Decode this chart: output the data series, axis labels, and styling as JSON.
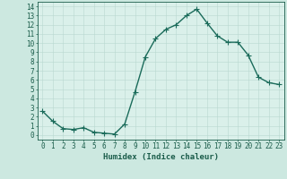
{
  "x": [
    0,
    1,
    2,
    3,
    4,
    5,
    6,
    7,
    8,
    9,
    10,
    11,
    12,
    13,
    14,
    15,
    16,
    17,
    18,
    19,
    20,
    21,
    22,
    23
  ],
  "y": [
    2.6,
    1.5,
    0.7,
    0.6,
    0.8,
    0.3,
    0.2,
    0.1,
    1.2,
    4.7,
    8.5,
    10.5,
    11.5,
    12.0,
    13.0,
    13.7,
    12.2,
    10.8,
    10.1,
    10.1,
    8.7,
    6.3,
    5.7,
    5.5
  ],
  "line_color": "#1a6b5a",
  "bg_color": "#cce8e0",
  "grid_color": "#b8d8d0",
  "plot_bg": "#daf0ea",
  "xlabel": "Humidex (Indice chaleur)",
  "ylabel_ticks": [
    0,
    1,
    2,
    3,
    4,
    5,
    6,
    7,
    8,
    9,
    10,
    11,
    12,
    13,
    14
  ],
  "xlim": [
    -0.5,
    23.5
  ],
  "ylim": [
    -0.5,
    14.5
  ],
  "xtick_labels": [
    "0",
    "1",
    "2",
    "3",
    "4",
    "5",
    "6",
    "7",
    "8",
    "9",
    "10",
    "11",
    "12",
    "13",
    "14",
    "15",
    "16",
    "17",
    "18",
    "19",
    "20",
    "21",
    "22",
    "23"
  ],
  "marker": "+",
  "linewidth": 1.0,
  "markersize": 4,
  "font_color": "#1a5c4a",
  "xlabel_fontsize": 6.5,
  "tick_fontsize": 5.5
}
